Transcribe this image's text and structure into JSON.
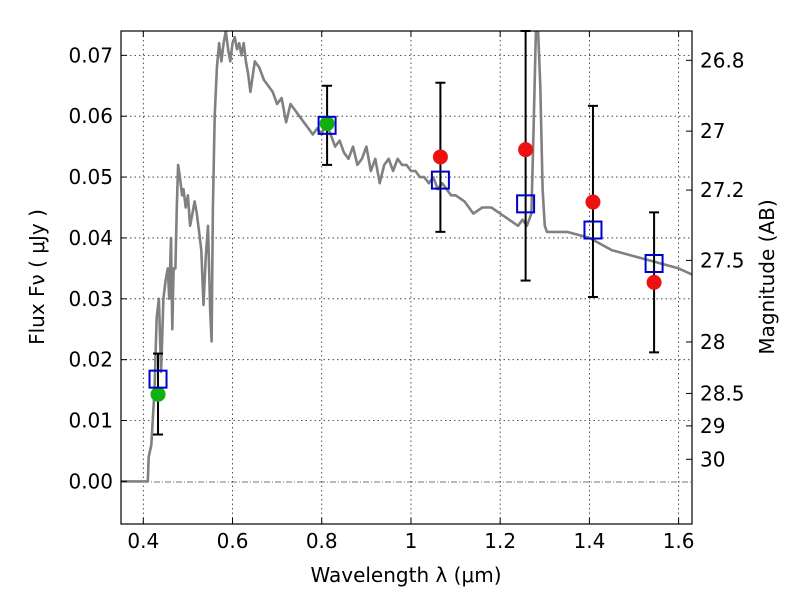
{
  "chart_data": {
    "type": "scatter",
    "xlabel": "Wavelength  λ (μm)",
    "ylabel": "Flux  Fν  ( μJy )",
    "y2label": "Magnitude (AB)",
    "xlim": [
      0.35,
      1.63
    ],
    "ylim": [
      -0.007,
      0.074
    ],
    "grid": true,
    "x_ticks": [
      {
        "value": 0.4,
        "label": "0.4"
      },
      {
        "value": 0.6,
        "label": "0.6"
      },
      {
        "value": 0.8,
        "label": "0.8"
      },
      {
        "value": 1.0,
        "label": "1"
      },
      {
        "value": 1.2,
        "label": "1.2"
      },
      {
        "value": 1.4,
        "label": "1.4"
      },
      {
        "value": 1.6,
        "label": "1.6"
      }
    ],
    "y_ticks": [
      {
        "value": 0.0,
        "label": "0.00"
      },
      {
        "value": 0.01,
        "label": "0.01"
      },
      {
        "value": 0.02,
        "label": "0.02"
      },
      {
        "value": 0.03,
        "label": "0.03"
      },
      {
        "value": 0.04,
        "label": "0.04"
      },
      {
        "value": 0.05,
        "label": "0.05"
      },
      {
        "value": 0.06,
        "label": "0.06"
      },
      {
        "value": 0.07,
        "label": "0.07"
      }
    ],
    "y2_ticks": [
      {
        "value": 26.8,
        "label": "26.8"
      },
      {
        "value": 27.0,
        "label": "27"
      },
      {
        "value": 27.2,
        "label": "27.2"
      },
      {
        "value": 27.5,
        "label": "27.5"
      },
      {
        "value": 28.0,
        "label": "28"
      },
      {
        "value": 28.5,
        "label": "28.5"
      },
      {
        "value": 29.0,
        "label": "29"
      },
      {
        "value": 30.0,
        "label": "30"
      }
    ],
    "sed_model": {
      "name": "SED model",
      "color": "#808080",
      "x": [
        0.35,
        0.41,
        0.412,
        0.418,
        0.425,
        0.43,
        0.435,
        0.44,
        0.445,
        0.45,
        0.455,
        0.458,
        0.462,
        0.465,
        0.468,
        0.472,
        0.475,
        0.478,
        0.482,
        0.487,
        0.49,
        0.495,
        0.5,
        0.505,
        0.51,
        0.515,
        0.52,
        0.525,
        0.53,
        0.535,
        0.54,
        0.545,
        0.55,
        0.553,
        0.556,
        0.56,
        0.565,
        0.57,
        0.575,
        0.58,
        0.585,
        0.59,
        0.595,
        0.6,
        0.605,
        0.61,
        0.615,
        0.62,
        0.625,
        0.63,
        0.635,
        0.64,
        0.65,
        0.66,
        0.67,
        0.68,
        0.69,
        0.7,
        0.71,
        0.72,
        0.73,
        0.74,
        0.75,
        0.76,
        0.77,
        0.78,
        0.79,
        0.8,
        0.81,
        0.82,
        0.83,
        0.84,
        0.85,
        0.86,
        0.87,
        0.88,
        0.89,
        0.9,
        0.91,
        0.92,
        0.93,
        0.94,
        0.95,
        0.96,
        0.97,
        0.98,
        0.99,
        1.0,
        1.01,
        1.02,
        1.03,
        1.04,
        1.05,
        1.06,
        1.07,
        1.08,
        1.09,
        1.1,
        1.12,
        1.14,
        1.16,
        1.18,
        1.2,
        1.22,
        1.24,
        1.25,
        1.26,
        1.27,
        1.275,
        1.28,
        1.285,
        1.29,
        1.295,
        1.3,
        1.305,
        1.31,
        1.35,
        1.4,
        1.45,
        1.5,
        1.55,
        1.6,
        1.63
      ],
      "y": [
        0.0,
        0.0,
        0.004,
        0.006,
        0.015,
        0.027,
        0.03,
        0.018,
        0.03,
        0.033,
        0.035,
        0.03,
        0.04,
        0.025,
        0.035,
        0.035,
        0.045,
        0.052,
        0.05,
        0.047,
        0.048,
        0.045,
        0.047,
        0.042,
        0.044,
        0.046,
        0.044,
        0.041,
        0.038,
        0.029,
        0.037,
        0.042,
        0.028,
        0.023,
        0.045,
        0.06,
        0.068,
        0.072,
        0.069,
        0.072,
        0.074,
        0.071,
        0.069,
        0.072,
        0.073,
        0.071,
        0.072,
        0.07,
        0.072,
        0.069,
        0.067,
        0.064,
        0.069,
        0.068,
        0.066,
        0.065,
        0.064,
        0.062,
        0.063,
        0.059,
        0.062,
        0.061,
        0.06,
        0.059,
        0.058,
        0.057,
        0.058,
        0.057,
        0.059,
        0.057,
        0.055,
        0.056,
        0.054,
        0.053,
        0.055,
        0.052,
        0.053,
        0.055,
        0.051,
        0.053,
        0.049,
        0.052,
        0.053,
        0.051,
        0.053,
        0.052,
        0.052,
        0.051,
        0.051,
        0.05,
        0.05,
        0.049,
        0.05,
        0.048,
        0.049,
        0.048,
        0.047,
        0.047,
        0.046,
        0.044,
        0.045,
        0.045,
        0.044,
        0.043,
        0.042,
        0.043,
        0.042,
        0.044,
        0.058,
        0.074,
        0.074,
        0.065,
        0.048,
        0.042,
        0.041,
        0.041,
        0.041,
        0.04,
        0.038,
        0.037,
        0.036,
        0.035,
        0.034
      ]
    },
    "photometry": [
      {
        "x": 0.433,
        "model": 0.0168,
        "obs": 0.0143,
        "err_low": 0.0077,
        "err_high": 0.021,
        "obs_color": "#10b010"
      },
      {
        "x": 0.812,
        "model": 0.0585,
        "obs": 0.0588,
        "err_low": 0.052,
        "err_high": 0.065,
        "obs_color": "#10b010"
      },
      {
        "x": 1.066,
        "model": 0.0495,
        "obs": 0.0533,
        "err_low": 0.041,
        "err_high": 0.0655,
        "obs_color": "#ee1111"
      },
      {
        "x": 1.257,
        "model": 0.0456,
        "obs": 0.0545,
        "err_low": 0.033,
        "err_high": 0.074,
        "obs_color": "#ee1111"
      },
      {
        "x": 1.408,
        "model": 0.0413,
        "obs": 0.0459,
        "err_low": 0.0303,
        "err_high": 0.0617,
        "obs_color": "#ee1111"
      },
      {
        "x": 1.545,
        "model": 0.0358,
        "obs": 0.0327,
        "err_low": 0.0212,
        "err_high": 0.0442,
        "obs_color": "#ee1111"
      }
    ],
    "model_marker_color": "#0000cc",
    "error_bar_color": "#000000"
  }
}
